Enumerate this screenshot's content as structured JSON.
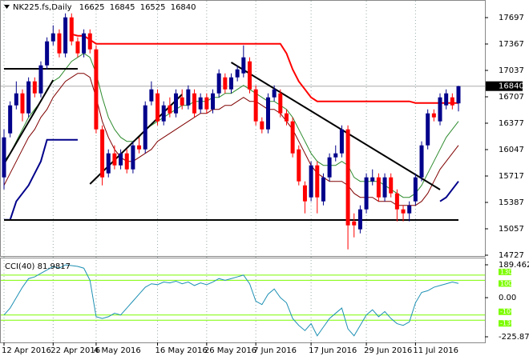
{
  "chart_data": {
    "type": "candlestick",
    "title": "NK225.fs,Daily",
    "open": [
      15700,
      16250,
      16600,
      16750,
      16500,
      16900,
      16750,
      17100,
      17400,
      17500,
      17250,
      17700,
      17400,
      17250,
      17500,
      17300,
      16300,
      15750,
      16000,
      15850,
      16000,
      15800,
      16100,
      16050,
      16650,
      16750,
      16400,
      16600,
      16500,
      16700,
      16600,
      16750,
      16550,
      16700,
      16550,
      16750,
      16950,
      16800,
      16950,
      17000,
      17150,
      16800,
      16400,
      16300,
      16700,
      16750,
      16500,
      16400,
      16050,
      15600,
      15450,
      15850,
      15400,
      15700,
      15950,
      16000,
      16300,
      15150,
      15050,
      15300,
      15650,
      15700,
      15450,
      15700,
      15500,
      15300,
      15250,
      15400,
      15700,
      16100,
      16500,
      16400,
      16600,
      16700,
      16625
    ],
    "high": [
      16300,
      16650,
      16900,
      16800,
      16950,
      16950,
      17150,
      17450,
      17600,
      17550,
      17750,
      17750,
      17450,
      17550,
      17550,
      17350,
      16350,
      16050,
      16100,
      16050,
      16050,
      16150,
      16200,
      16650,
      16900,
      16800,
      16650,
      16700,
      16800,
      16800,
      16850,
      16800,
      16750,
      16750,
      16800,
      17050,
      17000,
      17000,
      17100,
      17350,
      17200,
      16850,
      16450,
      16750,
      16850,
      16800,
      16550,
      16450,
      16100,
      15650,
      15900,
      15900,
      15750,
      16000,
      16100,
      16350,
      16350,
      15250,
      15350,
      15750,
      15800,
      15750,
      15750,
      15750,
      15550,
      15350,
      15400,
      15750,
      16150,
      16550,
      16550,
      16750,
      16800,
      16750,
      16845
    ],
    "low": [
      15550,
      16200,
      16550,
      16400,
      16450,
      16700,
      16700,
      17050,
      17350,
      17200,
      17200,
      17350,
      17200,
      17200,
      17250,
      16250,
      15600,
      15700,
      15800,
      15800,
      15750,
      15750,
      16000,
      16000,
      16600,
      16350,
      16350,
      16450,
      16450,
      16550,
      16550,
      16450,
      16500,
      16500,
      16500,
      16700,
      16750,
      16750,
      16900,
      16950,
      16750,
      16350,
      16250,
      16250,
      16650,
      16450,
      16350,
      15950,
      15600,
      15250,
      15400,
      15250,
      15350,
      15650,
      15900,
      15950,
      14800,
      14950,
      15000,
      15250,
      15600,
      15400,
      15400,
      15450,
      15150,
      15150,
      15150,
      15350,
      15650,
      16050,
      16400,
      16350,
      16550,
      16550,
      16525
    ],
    "close": [
      16200,
      16600,
      16750,
      16500,
      16900,
      16750,
      17100,
      17400,
      17500,
      17250,
      17700,
      17400,
      17250,
      17500,
      17300,
      16300,
      15700,
      16000,
      15850,
      16000,
      15800,
      16100,
      16050,
      16600,
      16800,
      16400,
      16600,
      16500,
      16750,
      16600,
      16800,
      16500,
      16700,
      16550,
      16750,
      17000,
      16800,
      16950,
      17050,
      17200,
      16800,
      16400,
      16300,
      16700,
      16800,
      16500,
      16400,
      16000,
      15650,
      15400,
      15850,
      15450,
      15700,
      15950,
      16000,
      16300,
      15100,
      15100,
      15300,
      15700,
      15700,
      15450,
      15700,
      15500,
      15300,
      15250,
      15350,
      15700,
      16100,
      16500,
      16450,
      16700,
      16750,
      16600,
      16840
    ],
    "up_color": "#00008b",
    "down_color": "#ff0000",
    "ylim": [
      14727,
      17867
    ],
    "yticks": [
      17697,
      17367,
      17037,
      16707,
      16377,
      16047,
      15717,
      15387,
      15057,
      14727
    ],
    "xticks": [
      {
        "value": 0,
        "label": "12 Apr 2016"
      },
      {
        "value": 8,
        "label": "22 Apr 2016"
      },
      {
        "value": 15,
        "label": "4 May 2016"
      },
      {
        "value": 25,
        "label": "16 May 2016"
      },
      {
        "value": 33,
        "label": "26 May 2016"
      },
      {
        "value": 41,
        "label": "7 Jun 2016"
      },
      {
        "value": 50,
        "label": "17 Jun 2016"
      },
      {
        "value": 59,
        "label": "29 Jun 2016"
      },
      {
        "value": 67,
        "label": "11 Jul 2016"
      }
    ],
    "overlays": [
      {
        "color": "#2e8b2e",
        "width": 1,
        "values": [
          15900,
          16000,
          16150,
          16300,
          16450,
          16550,
          16650,
          16800,
          16900,
          16950,
          17050,
          17150,
          17200,
          17250,
          17200,
          17000,
          16700,
          16450,
          16300,
          16200,
          16150,
          16150,
          16200,
          16300,
          16350,
          16400,
          16450,
          16500,
          16550,
          16600,
          16600,
          16650,
          16650,
          16650,
          16700,
          16700,
          16750,
          16750,
          16800,
          16850,
          16800,
          16750,
          16700,
          16650,
          16650,
          16600,
          16550,
          16450,
          16300,
          16150,
          16000,
          15900,
          15850,
          15850,
          15850,
          15900,
          15850,
          15700,
          15650,
          15650,
          15650,
          15650,
          15600,
          15550,
          15500,
          15450,
          15450,
          15500,
          15600,
          15750,
          15900,
          16050,
          16200,
          16300,
          16400
        ]
      },
      {
        "color": "#800000",
        "width": 1,
        "values": [
          15600,
          15750,
          15900,
          16050,
          16200,
          16300,
          16450,
          16550,
          16700,
          16800,
          16900,
          16950,
          17000,
          17000,
          16950,
          16700,
          16400,
          16200,
          16050,
          15950,
          15900,
          15900,
          15950,
          16000,
          16050,
          16150,
          16200,
          16250,
          16300,
          16350,
          16400,
          16450,
          16500,
          16500,
          16550,
          16550,
          16600,
          16600,
          16650,
          16700,
          16650,
          16650,
          16600,
          16550,
          16550,
          16500,
          16400,
          16300,
          16150,
          16000,
          15850,
          15750,
          15700,
          15650,
          15650,
          15650,
          15600,
          15500,
          15450,
          15450,
          15450,
          15400,
          15400,
          15400,
          15350,
          15350,
          15350,
          15350,
          15400,
          15500,
          15650,
          15800,
          15900,
          16000,
          16100
        ]
      },
      {
        "color": "#ff0000",
        "width": 2,
        "values": [
          null,
          null,
          null,
          null,
          null,
          null,
          null,
          null,
          null,
          null,
          null,
          17490,
          17470,
          17470,
          17420,
          17370,
          17370,
          17370,
          17370,
          17370,
          17370,
          17370,
          17370,
          17370,
          17370,
          17370,
          17370,
          17370,
          17370,
          17370,
          17370,
          17370,
          17370,
          17370,
          17370,
          17370,
          17370,
          17370,
          17370,
          17370,
          17370,
          17370,
          17370,
          17370,
          17370,
          17370,
          17250,
          17050,
          16900,
          16800,
          16700,
          16650,
          16650,
          16650,
          16650,
          16650,
          16650,
          16650,
          16650,
          16650,
          16650,
          16650,
          16650,
          16650,
          16650,
          16650,
          16650,
          16630,
          16630,
          16630,
          16630,
          16630,
          16630,
          16630,
          16630
        ]
      },
      {
        "color": "#00008b",
        "width": 2,
        "values": [
          15170,
          15170,
          15400,
          15500,
          15600,
          15750,
          15900,
          16170,
          16170,
          16170,
          16170,
          16170,
          16170,
          null,
          null,
          null,
          null,
          null,
          null,
          null,
          null,
          null,
          null,
          null,
          null,
          null,
          null,
          null,
          null,
          null,
          null,
          null,
          null,
          null,
          null,
          null,
          null,
          null,
          null,
          null,
          null,
          null,
          null,
          null,
          null,
          null,
          null,
          null,
          null,
          null,
          null,
          null,
          null,
          null,
          null,
          null,
          null,
          null,
          null,
          null,
          null,
          null,
          null,
          null,
          null,
          null,
          null,
          null,
          null,
          null,
          null,
          15400,
          15450,
          15550,
          15650
        ]
      }
    ],
    "trend_color": "#000000",
    "trendlines": [
      {
        "x": [
          0,
          8
        ],
        "y": [
          15867,
          16917
        ]
      },
      {
        "x": [
          14,
          29
        ],
        "y": [
          15617,
          16737
        ]
      },
      {
        "x": [
          37,
          71
        ],
        "y": [
          17137,
          15547
        ]
      },
      {
        "x": [
          0,
          12
        ],
        "y": [
          17057,
          17057
        ]
      },
      {
        "x": [
          0,
          74
        ],
        "y": [
          15167,
          15167
        ]
      }
    ],
    "indicator": {
      "title": "CCI(40)",
      "color": "#1e90b4",
      "level_color": "#7cfc00",
      "values": [
        -100,
        -60,
        0,
        60,
        110,
        120,
        140,
        160,
        180,
        170,
        189,
        185,
        180,
        170,
        100,
        -110,
        -120,
        -110,
        -90,
        -100,
        -60,
        -20,
        20,
        60,
        80,
        75,
        90,
        85,
        95,
        80,
        90,
        70,
        85,
        75,
        90,
        110,
        100,
        110,
        120,
        130,
        80,
        -20,
        -40,
        20,
        50,
        0,
        -30,
        -120,
        -160,
        -190,
        -150,
        -220,
        -170,
        -120,
        -90,
        -60,
        -180,
        -220,
        -160,
        -100,
        -70,
        -110,
        -80,
        -120,
        -150,
        -160,
        -140,
        -30,
        30,
        40,
        60,
        70,
        80,
        90,
        81.9817
      ],
      "ylim": [
        -225.876,
        189.4629
      ],
      "yticks": [
        189.4629,
        {
          "value": 0,
          "label": "0.00"
        },
        -225.876
      ],
      "levels": [
        130,
        100,
        -100,
        -130
      ]
    }
  }
}
